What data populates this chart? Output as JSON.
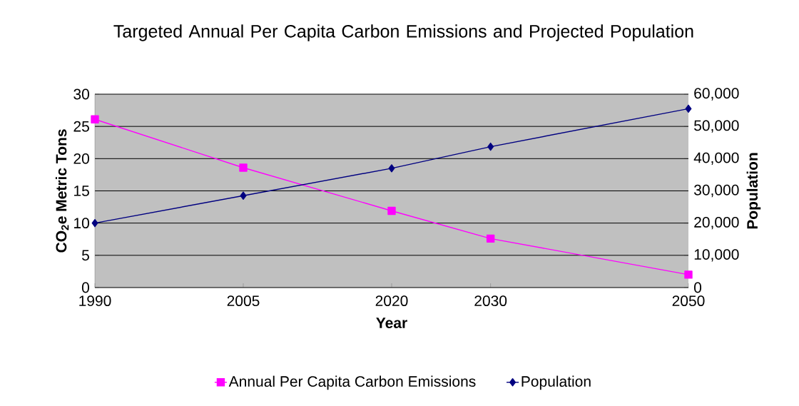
{
  "chart_data": {
    "type": "line",
    "title": "Targeted Annual Per Capita Carbon Emissions and Projected Population",
    "xlabel": "Year",
    "ylabel": "CO$_{2}$e Metric Tons",
    "y2label": "Population",
    "x": [
      1990,
      2005,
      2020,
      2030,
      2050
    ],
    "xlim": [
      1990,
      2050
    ],
    "xticks": [
      1990,
      2005,
      2020,
      2030,
      2050
    ],
    "ylim": [
      0,
      30
    ],
    "yticks": [
      0,
      5,
      10,
      15,
      20,
      25,
      30
    ],
    "y2lim": [
      0,
      60000
    ],
    "y2ticks": [
      0,
      {
        "value": 10000,
        "label": "10,000"
      },
      {
        "value": 20000,
        "label": "20,000"
      },
      {
        "value": 30000,
        "label": "30,000"
      },
      {
        "value": 40000,
        "label": "40,000"
      },
      {
        "value": 50000,
        "label": "50,000"
      },
      {
        "value": 60000,
        "label": "60,000"
      }
    ],
    "series": [
      {
        "name": "Annual Per Capita Carbon Emissions",
        "color": "#ff00ff",
        "marker": "square",
        "values": [
          26.1,
          18.6,
          11.9,
          7.6,
          2.0
        ]
      },
      {
        "name": "Population",
        "color": "#000080",
        "marker": "diamond",
        "axis": "y2",
        "values": [
          20000,
          28500,
          37000,
          43700,
          55500
        ]
      }
    ],
    "grid": "y",
    "legend": "bottom"
  }
}
